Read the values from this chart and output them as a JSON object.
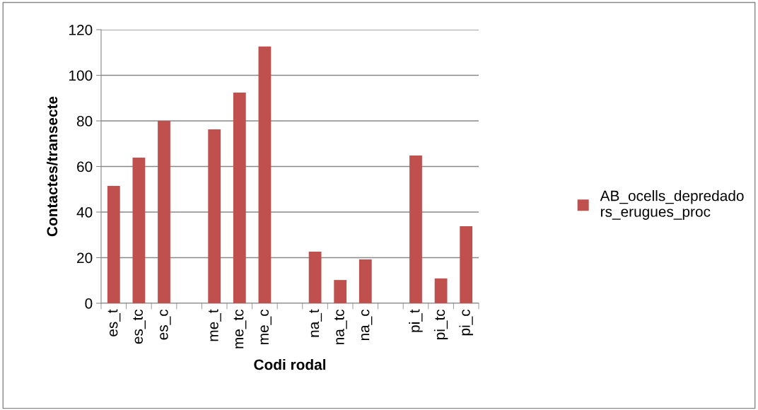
{
  "chart_data": {
    "type": "bar",
    "xlabel": "Codi rodal",
    "ylabel": "Contactes/transecte",
    "categories": [
      "es_t",
      "es_tc",
      "es_c",
      null,
      "me_t",
      "me_tc",
      "me_c",
      null,
      "na_t",
      "na_tc",
      "na_c",
      null,
      "pi_t",
      "pi_tc",
      "pi_c"
    ],
    "series": [
      {
        "name": "AB_ocells_depredadors_erugues_proc",
        "color": "#c0504d",
        "values": [
          51.5,
          63.9,
          80,
          null,
          76.3,
          92.4,
          112.6,
          null,
          22.6,
          10.2,
          19.2,
          null,
          64.8,
          10.9,
          33.8
        ]
      }
    ],
    "ylim": [
      0,
      120
    ],
    "yticks": [
      0,
      20,
      40,
      60,
      80,
      100,
      120
    ],
    "grid": "y",
    "legend": "right"
  }
}
